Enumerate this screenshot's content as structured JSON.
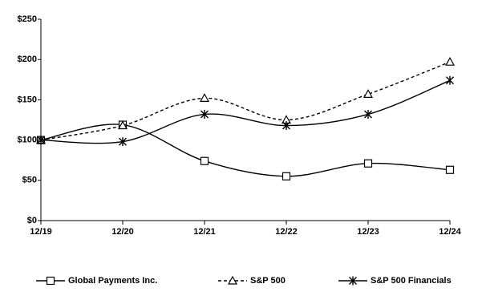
{
  "chart_data": {
    "type": "line",
    "categories": [
      "12/19",
      "12/20",
      "12/21",
      "12/22",
      "12/23",
      "12/24"
    ],
    "series": [
      {
        "name": "Global Payments Inc.",
        "color": "#000000",
        "line_style": "solid",
        "marker": "square",
        "values": [
          100,
          119,
          74,
          55,
          71,
          63
        ]
      },
      {
        "name": "S&P 500",
        "color": "#000000",
        "line_style": "dashed",
        "marker": "triangle",
        "values": [
          100,
          118,
          152,
          125,
          157,
          197
        ]
      },
      {
        "name": "S&P 500 Financials",
        "color": "#000000",
        "line_style": "solid",
        "marker": "star",
        "values": [
          100,
          98,
          132,
          118,
          132,
          174
        ]
      }
    ],
    "ylim": [
      0,
      250
    ],
    "yticks": [
      {
        "value": 0,
        "label": "$0"
      },
      {
        "value": 50,
        "label": "$50"
      },
      {
        "value": 100,
        "label": "$100"
      },
      {
        "value": 150,
        "label": "$150"
      },
      {
        "value": 200,
        "label": "$200"
      },
      {
        "value": 250,
        "label": "$250"
      }
    ],
    "grid": false,
    "legend": "bottom"
  }
}
